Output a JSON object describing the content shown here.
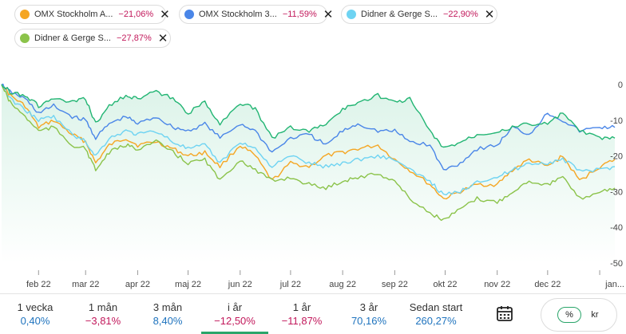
{
  "legend_chips": [
    {
      "name": "OMX Stockholm A...",
      "change": "−21,06%",
      "color": "#f5a623",
      "close": "✕"
    },
    {
      "name": "OMX Stockholm 3...",
      "change": "−11,59%",
      "color": "#4a86e8",
      "close": "✕"
    },
    {
      "name": "Didner & Gerge S...",
      "change": "−22,90%",
      "color": "#6ed3f2",
      "close": "✕"
    },
    {
      "name": "Didner & Gerge S...",
      "change": "−27,87%",
      "color": "#8bc34a",
      "close": "✕"
    }
  ],
  "chart_data": {
    "type": "line",
    "x_tick_labels": [
      "feb 22",
      "mar 22",
      "apr 22",
      "maj 22",
      "jun 22",
      "jul 22",
      "aug 22",
      "sep 22",
      "okt 22",
      "nov 22",
      "dec 22",
      "jan..."
    ],
    "x_tick_dates": [
      "2022-02-01",
      "2022-03-01",
      "2022-04-01",
      "2022-05-01",
      "2022-06-01",
      "2022-07-01",
      "2022-08-01",
      "2022-09-01",
      "2022-10-01",
      "2022-11-01",
      "2022-12-01",
      "2023-01-01"
    ],
    "x_range": [
      "2022-01-10",
      "2023-01-10"
    ],
    "y_ticks": [
      0,
      -10,
      -20,
      -30,
      -40,
      -50
    ],
    "ylim": [
      -50,
      0
    ],
    "grid": false,
    "legend_position": "top",
    "series": [
      {
        "color": "#f5a623",
        "x": [
          "2022-01-10",
          "2022-01-15",
          "2022-01-24",
          "2022-02-01",
          "2022-02-10",
          "2022-02-21",
          "2022-03-01",
          "2022-03-07",
          "2022-03-15",
          "2022-03-25",
          "2022-04-01",
          "2022-04-12",
          "2022-04-22",
          "2022-05-01",
          "2022-05-11",
          "2022-05-20",
          "2022-06-01",
          "2022-06-10",
          "2022-06-20",
          "2022-07-01",
          "2022-07-12",
          "2022-07-22",
          "2022-08-01",
          "2022-08-10",
          "2022-08-22",
          "2022-09-01",
          "2022-09-10",
          "2022-09-22",
          "2022-09-30",
          "2022-10-10",
          "2022-10-20",
          "2022-11-01",
          "2022-11-10",
          "2022-11-20",
          "2022-12-01",
          "2022-12-10",
          "2022-12-20",
          "2023-01-01",
          "2023-01-10"
        ],
        "y": [
          0,
          -3,
          -6,
          -12,
          -10,
          -14,
          -16,
          -22,
          -17,
          -15,
          -17,
          -16,
          -18,
          -20,
          -19,
          -23,
          -17,
          -20,
          -27,
          -22,
          -23,
          -20,
          -19,
          -18,
          -17,
          -21,
          -24,
          -28,
          -32,
          -30,
          -28,
          -28,
          -24,
          -21,
          -23,
          -20,
          -27,
          -23,
          -21
        ]
      },
      {
        "color": "#4a86e8",
        "x": [
          "2022-01-10",
          "2022-01-15",
          "2022-01-24",
          "2022-02-01",
          "2022-02-10",
          "2022-02-21",
          "2022-03-01",
          "2022-03-07",
          "2022-03-15",
          "2022-03-25",
          "2022-04-01",
          "2022-04-12",
          "2022-04-22",
          "2022-05-01",
          "2022-05-11",
          "2022-05-20",
          "2022-06-01",
          "2022-06-10",
          "2022-06-20",
          "2022-07-01",
          "2022-07-12",
          "2022-07-22",
          "2022-08-01",
          "2022-08-10",
          "2022-08-22",
          "2022-09-01",
          "2022-09-10",
          "2022-09-22",
          "2022-09-30",
          "2022-10-10",
          "2022-10-20",
          "2022-11-01",
          "2022-11-10",
          "2022-11-20",
          "2022-12-01",
          "2022-12-10",
          "2022-12-20",
          "2023-01-01",
          "2023-01-10"
        ],
        "y": [
          0,
          -2,
          -4,
          -8,
          -6,
          -9,
          -10,
          -15,
          -11,
          -9,
          -11,
          -9,
          -12,
          -13,
          -11,
          -15,
          -11,
          -13,
          -19,
          -15,
          -14,
          -17,
          -13,
          -11,
          -13,
          -13,
          -16,
          -17,
          -24,
          -22,
          -18,
          -17,
          -12,
          -14,
          -8,
          -10,
          -13,
          -12,
          -12
        ]
      },
      {
        "color": "#6ed3f2",
        "x": [
          "2022-01-10",
          "2022-01-15",
          "2022-01-24",
          "2022-02-01",
          "2022-02-10",
          "2022-02-21",
          "2022-03-01",
          "2022-03-07",
          "2022-03-15",
          "2022-03-25",
          "2022-04-01",
          "2022-04-12",
          "2022-04-22",
          "2022-05-01",
          "2022-05-11",
          "2022-05-20",
          "2022-06-01",
          "2022-06-10",
          "2022-06-20",
          "2022-07-01",
          "2022-07-12",
          "2022-07-22",
          "2022-08-01",
          "2022-08-10",
          "2022-08-22",
          "2022-09-01",
          "2022-09-10",
          "2022-09-22",
          "2022-09-30",
          "2022-10-10",
          "2022-10-20",
          "2022-11-01",
          "2022-11-10",
          "2022-11-20",
          "2022-12-01",
          "2022-12-10",
          "2022-12-20",
          "2023-01-01",
          "2023-01-10"
        ],
        "y": [
          0,
          -4,
          -7,
          -10,
          -9,
          -14,
          -16,
          -20,
          -15,
          -13,
          -14,
          -13,
          -16,
          -18,
          -17,
          -22,
          -16,
          -18,
          -23,
          -20,
          -22,
          -23,
          -22,
          -21,
          -20,
          -21,
          -24,
          -27,
          -31,
          -30,
          -27,
          -26,
          -24,
          -22,
          -22,
          -21,
          -24,
          -24,
          -23
        ]
      },
      {
        "color": "#8bc34a",
        "x": [
          "2022-01-10",
          "2022-01-15",
          "2022-01-24",
          "2022-02-01",
          "2022-02-10",
          "2022-02-21",
          "2022-03-01",
          "2022-03-07",
          "2022-03-15",
          "2022-03-25",
          "2022-04-01",
          "2022-04-12",
          "2022-04-22",
          "2022-05-01",
          "2022-05-11",
          "2022-05-20",
          "2022-06-01",
          "2022-06-10",
          "2022-06-20",
          "2022-07-01",
          "2022-07-12",
          "2022-07-22",
          "2022-08-01",
          "2022-08-10",
          "2022-08-22",
          "2022-09-01",
          "2022-09-10",
          "2022-09-22",
          "2022-09-30",
          "2022-10-10",
          "2022-10-20",
          "2022-11-01",
          "2022-11-10",
          "2022-11-20",
          "2022-12-01",
          "2022-12-10",
          "2022-12-20",
          "2023-01-01",
          "2023-01-10"
        ],
        "y": [
          0,
          -5,
          -9,
          -13,
          -12,
          -17,
          -18,
          -24,
          -19,
          -17,
          -18,
          -16,
          -19,
          -22,
          -21,
          -27,
          -21,
          -24,
          -27,
          -26,
          -28,
          -29,
          -27,
          -26,
          -25,
          -27,
          -32,
          -36,
          -38,
          -35,
          -32,
          -33,
          -30,
          -27,
          -28,
          -26,
          -32,
          -30,
          -29
        ]
      },
      {
        "color": "#22b573",
        "x": [
          "2022-01-10",
          "2022-01-15",
          "2022-01-24",
          "2022-02-01",
          "2022-02-10",
          "2022-02-21",
          "2022-03-01",
          "2022-03-07",
          "2022-03-15",
          "2022-03-25",
          "2022-04-01",
          "2022-04-12",
          "2022-04-22",
          "2022-05-01",
          "2022-05-11",
          "2022-05-20",
          "2022-06-01",
          "2022-06-10",
          "2022-06-20",
          "2022-07-01",
          "2022-07-12",
          "2022-07-22",
          "2022-08-01",
          "2022-08-10",
          "2022-08-22",
          "2022-09-01",
          "2022-09-10",
          "2022-09-22",
          "2022-09-30",
          "2022-10-10",
          "2022-10-20",
          "2022-11-01",
          "2022-11-10",
          "2022-11-20",
          "2022-12-01",
          "2022-12-10",
          "2022-12-20",
          "2023-01-01",
          "2023-01-10"
        ],
        "y": [
          0,
          -2,
          -3,
          -6,
          -4,
          -5,
          -4,
          -11,
          -6,
          -3,
          -4,
          -2,
          -4,
          -8,
          -5,
          -11,
          -5,
          -7,
          -15,
          -12,
          -13,
          -11,
          -7,
          -5,
          -3,
          -5,
          -4,
          -13,
          -18,
          -16,
          -14,
          -13,
          -12,
          -11,
          -11,
          -8,
          -13,
          -15,
          -15
        ]
      }
    ]
  },
  "period_tabs": [
    {
      "label": "1 vecka",
      "value": "0,40%",
      "sign": "pos"
    },
    {
      "label": "1 mån",
      "value": "−3,81%",
      "sign": "neg"
    },
    {
      "label": "3 mån",
      "value": "8,40%",
      "sign": "pos"
    },
    {
      "label": "i år",
      "value": "−12,50%",
      "sign": "neg",
      "active": true
    },
    {
      "label": "1 år",
      "value": "−11,87%",
      "sign": "neg"
    },
    {
      "label": "3 år",
      "value": "70,16%",
      "sign": "pos"
    },
    {
      "label": "Sedan start",
      "value": "260,27%",
      "sign": "pos"
    }
  ],
  "calendar_icon": "calendar-icon",
  "unit_toggle": {
    "percent": "%",
    "currency": "kr",
    "selected": "percent"
  }
}
